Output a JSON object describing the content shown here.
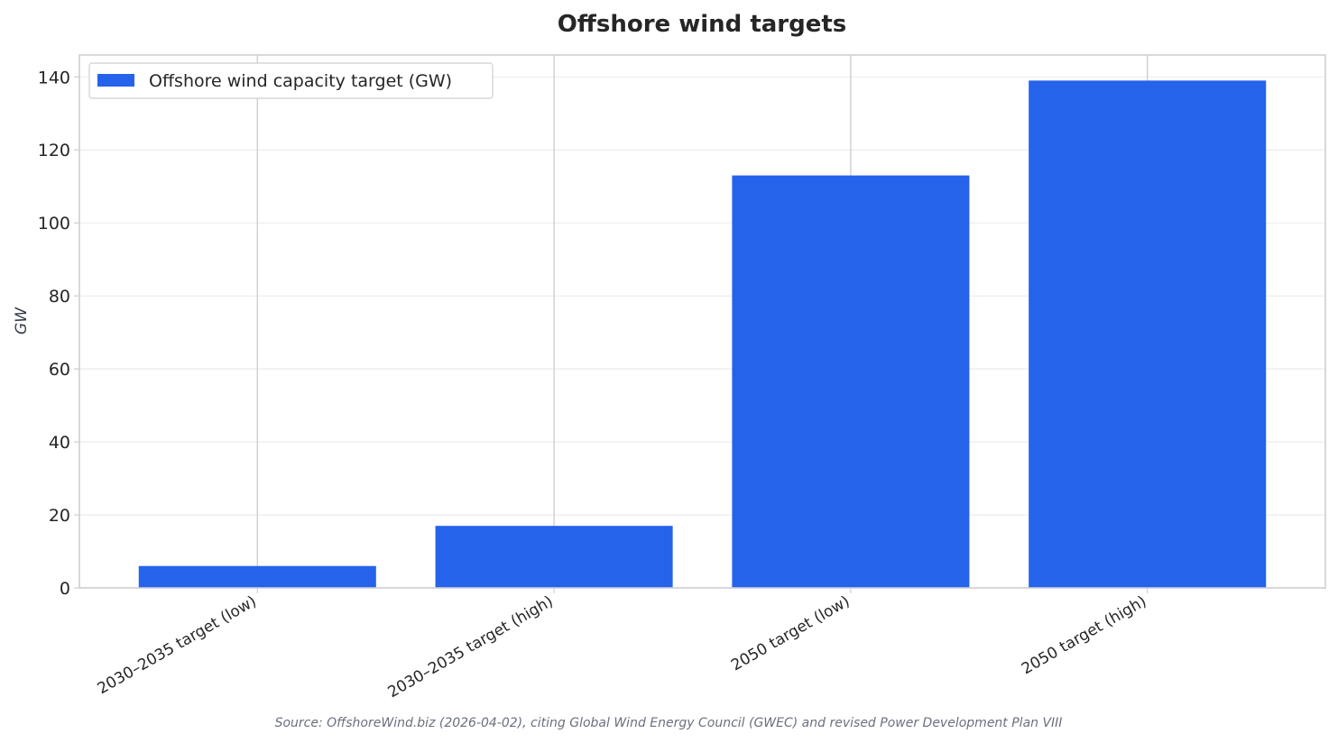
{
  "chart_data": {
    "type": "bar",
    "title": "Offshore wind targets",
    "xlabel": "",
    "ylabel": "GW",
    "categories": [
      "2030–2035 target (low)",
      "2030–2035 target (high)",
      "2050 target (low)",
      "2050 target (high)"
    ],
    "series": [
      {
        "name": "Offshore wind capacity target (GW)",
        "values": [
          6,
          17,
          113,
          139
        ],
        "color": "#2563eb"
      }
    ],
    "ylim": [
      0,
      146
    ],
    "yticks": [
      0,
      20,
      40,
      60,
      80,
      100,
      120,
      140
    ],
    "grid": true,
    "legend_position": "top-left",
    "source": "Source: OffshoreWind.biz (2026-04-02), citing Global Wind Energy Council (GWEC) and revised Power Development Plan VIII"
  }
}
